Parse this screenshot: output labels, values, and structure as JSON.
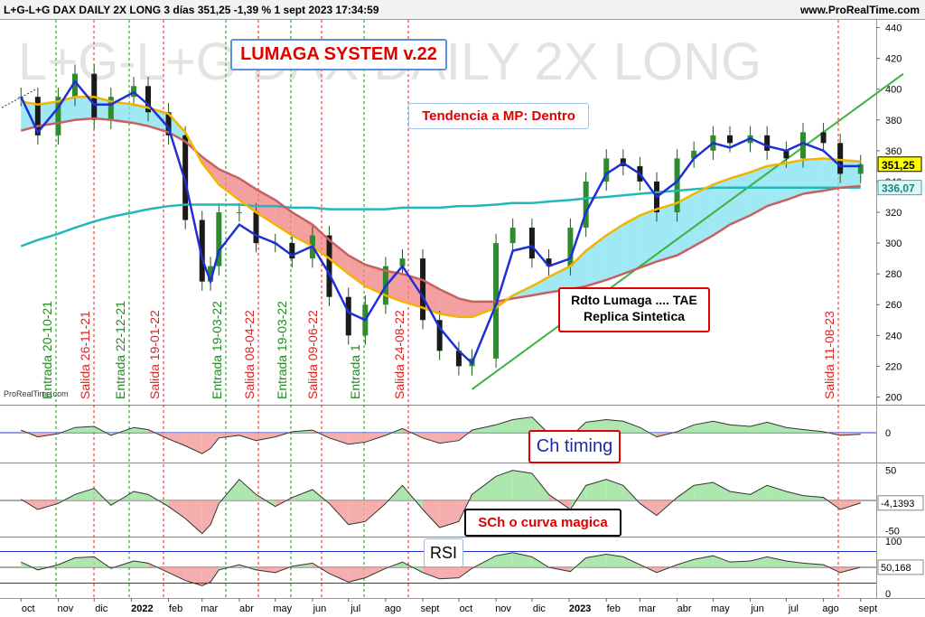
{
  "header": {
    "title": "L+G-L+G DAX DAILY 2X LONG 3 días 351,25 -1,39 % 1 sept 2023 17:34:59",
    "site": "www.ProRealTime.com"
  },
  "watermark": "L+G-L+G DAX DAILY 2X LONG",
  "credit": "ProRealTime.com",
  "annotations": {
    "system": "LUMAGA SYSTEM v.22",
    "trend": "Tendencia a MP: Dentro",
    "rdto_line1": "Rdto Lumaga .... TAE",
    "rdto_line2": "Replica Sintetica",
    "ch_timing": "Ch timing",
    "sch": "SCh o curva magica",
    "rsi": "RSI"
  },
  "colors": {
    "entrada": "#1e8a1e",
    "salida": "#dd2222",
    "price_candle": "#2e8b2e",
    "blue_line": "#1f2fd6",
    "yellow_line": "#f2b400",
    "brown_line": "#c86060",
    "cyan_line": "#22b8b8",
    "cloud_red": "#f08080",
    "cloud_cyan": "#7fe0f0",
    "trend_line": "#3cb23c"
  },
  "price_badges": [
    "351,25",
    "336,07"
  ],
  "chart_data": [
    {
      "type": "line",
      "panel": "price",
      "ylim": [
        195,
        445
      ],
      "yticks": [
        200,
        220,
        240,
        260,
        280,
        300,
        320,
        340,
        360,
        380,
        400,
        420,
        440
      ],
      "x": [
        "2021-10-01",
        "2021-10-15",
        "2021-11-01",
        "2021-11-15",
        "2021-12-01",
        "2021-12-15",
        "2022-01-03",
        "2022-01-15",
        "2022-02-01",
        "2022-02-15",
        "2022-03-01",
        "2022-03-08",
        "2022-03-15",
        "2022-04-01",
        "2022-04-15",
        "2022-05-01",
        "2022-05-15",
        "2022-06-01",
        "2022-06-15",
        "2022-07-01",
        "2022-07-15",
        "2022-08-01",
        "2022-08-15",
        "2022-09-01",
        "2022-09-15",
        "2022-10-01",
        "2022-10-12",
        "2022-11-01",
        "2022-11-15",
        "2022-12-01",
        "2022-12-15",
        "2023-01-02",
        "2023-01-15",
        "2023-02-01",
        "2023-02-15",
        "2023-03-01",
        "2023-03-15",
        "2023-04-01",
        "2023-04-15",
        "2023-05-01",
        "2023-05-15",
        "2023-06-01",
        "2023-06-15",
        "2023-07-01",
        "2023-07-15",
        "2023-08-01",
        "2023-08-15",
        "2023-09-01"
      ],
      "close": [
        395,
        370,
        395,
        410,
        380,
        395,
        402,
        385,
        370,
        315,
        275,
        285,
        320,
        320,
        300,
        300,
        290,
        305,
        265,
        240,
        260,
        285,
        290,
        250,
        230,
        220,
        225,
        300,
        310,
        290,
        285,
        310,
        340,
        355,
        350,
        340,
        320,
        355,
        360,
        370,
        365,
        370,
        360,
        355,
        372,
        365,
        345,
        351.25
      ],
      "series": [
        {
          "name": "",
          "values": [
            395,
            372,
            388,
            405,
            390,
            390,
            398,
            390,
            375,
            340,
            290,
            275,
            295,
            312,
            305,
            300,
            292,
            298,
            280,
            255,
            250,
            272,
            285,
            265,
            245,
            230,
            222,
            260,
            295,
            298,
            285,
            290,
            320,
            345,
            352,
            345,
            330,
            340,
            355,
            365,
            362,
            368,
            363,
            360,
            365,
            360,
            350,
            350
          ]
        },
        {
          "name": "",
          "values": [
            392,
            390,
            392,
            395,
            395,
            392,
            390,
            388,
            384,
            372,
            352,
            345,
            338,
            328,
            320,
            312,
            305,
            298,
            290,
            280,
            272,
            266,
            262,
            258,
            254,
            252,
            252,
            258,
            266,
            272,
            278,
            285,
            295,
            305,
            312,
            318,
            322,
            326,
            332,
            338,
            342,
            346,
            350,
            352,
            354,
            355,
            354,
            353
          ]
        },
        {
          "name": "",
          "values": [
            373,
            376,
            378,
            380,
            381,
            380,
            378,
            376,
            372,
            366,
            356,
            352,
            348,
            342,
            335,
            328,
            320,
            312,
            302,
            292,
            286,
            282,
            280,
            276,
            270,
            264,
            262,
            262,
            264,
            266,
            268,
            270,
            272,
            276,
            280,
            284,
            288,
            292,
            298,
            305,
            312,
            318,
            324,
            328,
            332,
            334,
            336,
            337
          ]
        },
        {
          "name": "",
          "values": [
            298,
            302,
            306,
            310,
            314,
            317,
            320,
            322,
            324,
            325,
            325,
            325,
            325,
            325,
            324,
            324,
            323,
            323,
            322,
            322,
            322,
            322,
            323,
            323,
            323,
            324,
            324,
            325,
            326,
            326,
            327,
            328,
            329,
            330,
            331,
            332,
            333,
            334,
            335,
            336,
            336,
            336,
            336,
            336,
            336,
            336,
            336,
            336.07
          ]
        }
      ]
    },
    {
      "type": "area",
      "panel": "Ch timing",
      "ylim": [
        -0.5,
        0.5
      ],
      "yticks": [
        0
      ],
      "values": [
        0.05,
        -0.08,
        -0.02,
        0.1,
        0.12,
        -0.05,
        0.1,
        0.06,
        -0.12,
        -0.25,
        -0.4,
        -0.3,
        -0.1,
        -0.05,
        -0.15,
        -0.08,
        0.02,
        0.05,
        -0.1,
        -0.22,
        -0.18,
        -0.05,
        0.08,
        -0.1,
        -0.2,
        -0.15,
        0.05,
        0.15,
        0.25,
        0.3,
        -0.02,
        -0.08,
        0.2,
        0.25,
        0.22,
        0.1,
        -0.08,
        0.02,
        0.15,
        0.22,
        0.15,
        0.12,
        0.2,
        0.1,
        0.06,
        0.02,
        -0.05,
        -0.03
      ]
    },
    {
      "type": "area",
      "panel": "SCh o curva magica",
      "ylim": [
        -60,
        60
      ],
      "yticks": [
        -50,
        0,
        50
      ],
      "current": "-4,1393",
      "values": [
        2,
        -15,
        -5,
        10,
        20,
        -8,
        15,
        10,
        -10,
        -30,
        -55,
        -40,
        -5,
        35,
        10,
        -10,
        5,
        18,
        -5,
        -40,
        -35,
        -5,
        25,
        -15,
        -45,
        -35,
        10,
        40,
        50,
        45,
        10,
        -15,
        25,
        35,
        25,
        -5,
        -25,
        5,
        25,
        30,
        15,
        10,
        25,
        15,
        8,
        5,
        -15,
        -4.1393
      ]
    },
    {
      "type": "area",
      "panel": "RSI",
      "ylim": [
        -5,
        105
      ],
      "yticks": [
        0,
        100
      ],
      "current": "50,168",
      "values": [
        60,
        45,
        55,
        68,
        70,
        48,
        62,
        58,
        40,
        25,
        15,
        22,
        45,
        55,
        45,
        40,
        52,
        58,
        38,
        22,
        30,
        48,
        60,
        40,
        28,
        30,
        48,
        72,
        78,
        70,
        50,
        42,
        68,
        75,
        70,
        55,
        40,
        55,
        65,
        72,
        60,
        62,
        70,
        62,
        58,
        55,
        40,
        50.168
      ]
    }
  ],
  "signals": [
    {
      "label": "Entrada 20-10-21",
      "type": "entrada"
    },
    {
      "label": "Salida 26-11-21",
      "type": "salida"
    },
    {
      "label": "Entrada 22-12-21",
      "type": "entrada"
    },
    {
      "label": "Salida 19-01-22",
      "type": "salida"
    },
    {
      "label": "Entrada 19-03-22",
      "type": "entrada"
    },
    {
      "label": "Salida 08-04-22",
      "type": "salida"
    },
    {
      "label": "Entrada 19-03-22",
      "type": "entrada"
    },
    {
      "label": "Salida 09-06-22",
      "type": "salida"
    },
    {
      "label": "Entrada 1",
      "type": "entrada"
    },
    {
      "label": "Salida 24-08-22",
      "type": "salida"
    },
    {
      "label": "Salida 11-08-23",
      "type": "salida"
    }
  ],
  "xaxis_labels": [
    "oct",
    "nov",
    "dic",
    "2022",
    "feb",
    "mar",
    "abr",
    "may",
    "jun",
    "jul",
    "ago",
    "sept",
    "oct",
    "nov",
    "dic",
    "2023",
    "feb",
    "mar",
    "abr",
    "may",
    "jun",
    "jul",
    "ago",
    "sept"
  ]
}
